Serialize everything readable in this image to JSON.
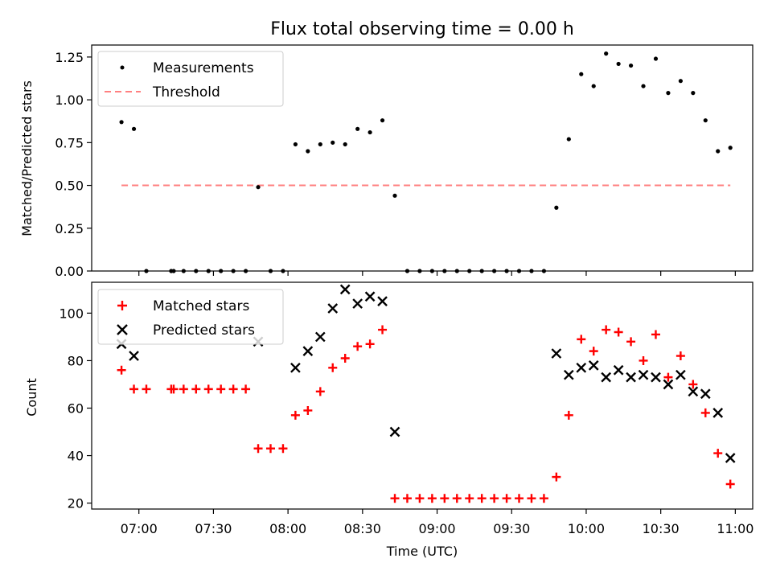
{
  "title": "Flux total observing time = 0.00 h",
  "chart_data": [
    {
      "type": "scatter",
      "panel": "top",
      "ylabel": "Matched/Predicted stars",
      "ylim": [
        0,
        1.32
      ],
      "yticks": [
        "0.00",
        "0.25",
        "0.50",
        "0.75",
        "1.00",
        "1.25"
      ],
      "legend": {
        "placement": "top-left",
        "entries": [
          "Measurements",
          "Threshold"
        ]
      },
      "series": [
        {
          "name": "Measurements",
          "color": "#000000",
          "marker": "dot",
          "x": [
            "06:53",
            "06:58",
            "07:03",
            "07:13",
            "07:14",
            "07:18",
            "07:23",
            "07:28",
            "07:33",
            "07:38",
            "07:43",
            "07:48",
            "07:53",
            "07:58",
            "08:03",
            "08:08",
            "08:13",
            "08:18",
            "08:23",
            "08:28",
            "08:33",
            "08:38",
            "08:43",
            "08:48",
            "08:53",
            "08:58",
            "09:03",
            "09:08",
            "09:13",
            "09:18",
            "09:23",
            "09:28",
            "09:33",
            "09:38",
            "09:43",
            "09:48",
            "09:53",
            "09:58",
            "10:03",
            "10:08",
            "10:13",
            "10:18",
            "10:23",
            "10:28",
            "10:33",
            "10:38",
            "10:43",
            "10:48",
            "10:53",
            "10:58"
          ],
          "y": [
            0.87,
            0.83,
            0.0,
            0.0,
            0.0,
            0.0,
            0.0,
            0.0,
            0.0,
            0.0,
            0.0,
            0.49,
            0.0,
            0.0,
            0.74,
            0.7,
            0.74,
            0.75,
            0.74,
            0.83,
            0.81,
            0.88,
            0.44,
            0.0,
            0.0,
            0.0,
            0.0,
            0.0,
            0.0,
            0.0,
            0.0,
            0.0,
            0.0,
            0.0,
            0.0,
            0.37,
            0.77,
            1.15,
            1.08,
            1.27,
            1.21,
            1.2,
            1.08,
            1.24,
            1.04,
            1.11,
            1.04,
            0.88,
            0.7,
            0.72
          ]
        },
        {
          "name": "Threshold",
          "color": "#ff8080",
          "style": "dashed",
          "x": [
            "06:53",
            "10:58"
          ],
          "y": [
            0.5,
            0.5
          ]
        }
      ]
    },
    {
      "type": "scatter",
      "panel": "bottom",
      "xlabel": "Time (UTC)",
      "ylabel": "Count",
      "ylim": [
        17.5,
        113
      ],
      "yticks": [
        "20",
        "40",
        "60",
        "80",
        "100"
      ],
      "xticks": [
        "07:00",
        "07:30",
        "08:00",
        "08:30",
        "09:00",
        "09:30",
        "10:00",
        "10:30",
        "11:00"
      ],
      "legend": {
        "placement": "top-left",
        "entries": [
          "Matched stars",
          "Predicted stars"
        ]
      },
      "series": [
        {
          "name": "Matched stars",
          "color": "#ff0000",
          "marker": "plus",
          "x": [
            "06:53",
            "06:58",
            "07:03",
            "07:13",
            "07:14",
            "07:18",
            "07:23",
            "07:28",
            "07:33",
            "07:38",
            "07:43",
            "07:48",
            "07:53",
            "07:58",
            "08:03",
            "08:08",
            "08:13",
            "08:18",
            "08:23",
            "08:28",
            "08:33",
            "08:38",
            "08:43",
            "08:48",
            "08:53",
            "08:58",
            "09:03",
            "09:08",
            "09:13",
            "09:18",
            "09:23",
            "09:28",
            "09:33",
            "09:38",
            "09:43",
            "09:48",
            "09:53",
            "09:58",
            "10:03",
            "10:08",
            "10:13",
            "10:18",
            "10:23",
            "10:28",
            "10:33",
            "10:38",
            "10:43",
            "10:48",
            "10:53",
            "10:58"
          ],
          "y": [
            76,
            68,
            68,
            68,
            68,
            68,
            68,
            68,
            68,
            68,
            68,
            43,
            43,
            43,
            57,
            59,
            67,
            77,
            81,
            86,
            87,
            93,
            22,
            22,
            22,
            22,
            22,
            22,
            22,
            22,
            22,
            22,
            22,
            22,
            22,
            31,
            57,
            89,
            84,
            93,
            92,
            88,
            80,
            91,
            73,
            82,
            70,
            58,
            41,
            28
          ]
        },
        {
          "name": "Predicted stars",
          "color": "#000000",
          "marker": "x",
          "x": [
            "06:53",
            "06:58",
            "07:48",
            "08:03",
            "08:08",
            "08:13",
            "08:18",
            "08:23",
            "08:28",
            "08:33",
            "08:38",
            "08:43",
            "09:48",
            "09:53",
            "09:58",
            "10:03",
            "10:08",
            "10:13",
            "10:18",
            "10:23",
            "10:28",
            "10:33",
            "10:38",
            "10:43",
            "10:48",
            "10:53",
            "10:58"
          ],
          "y": [
            87,
            82,
            88,
            77,
            84,
            90,
            102,
            110,
            104,
            107,
            105,
            50,
            83,
            74,
            77,
            78,
            73,
            76,
            73,
            74,
            73,
            70,
            74,
            67,
            66,
            58,
            39
          ]
        }
      ]
    }
  ]
}
